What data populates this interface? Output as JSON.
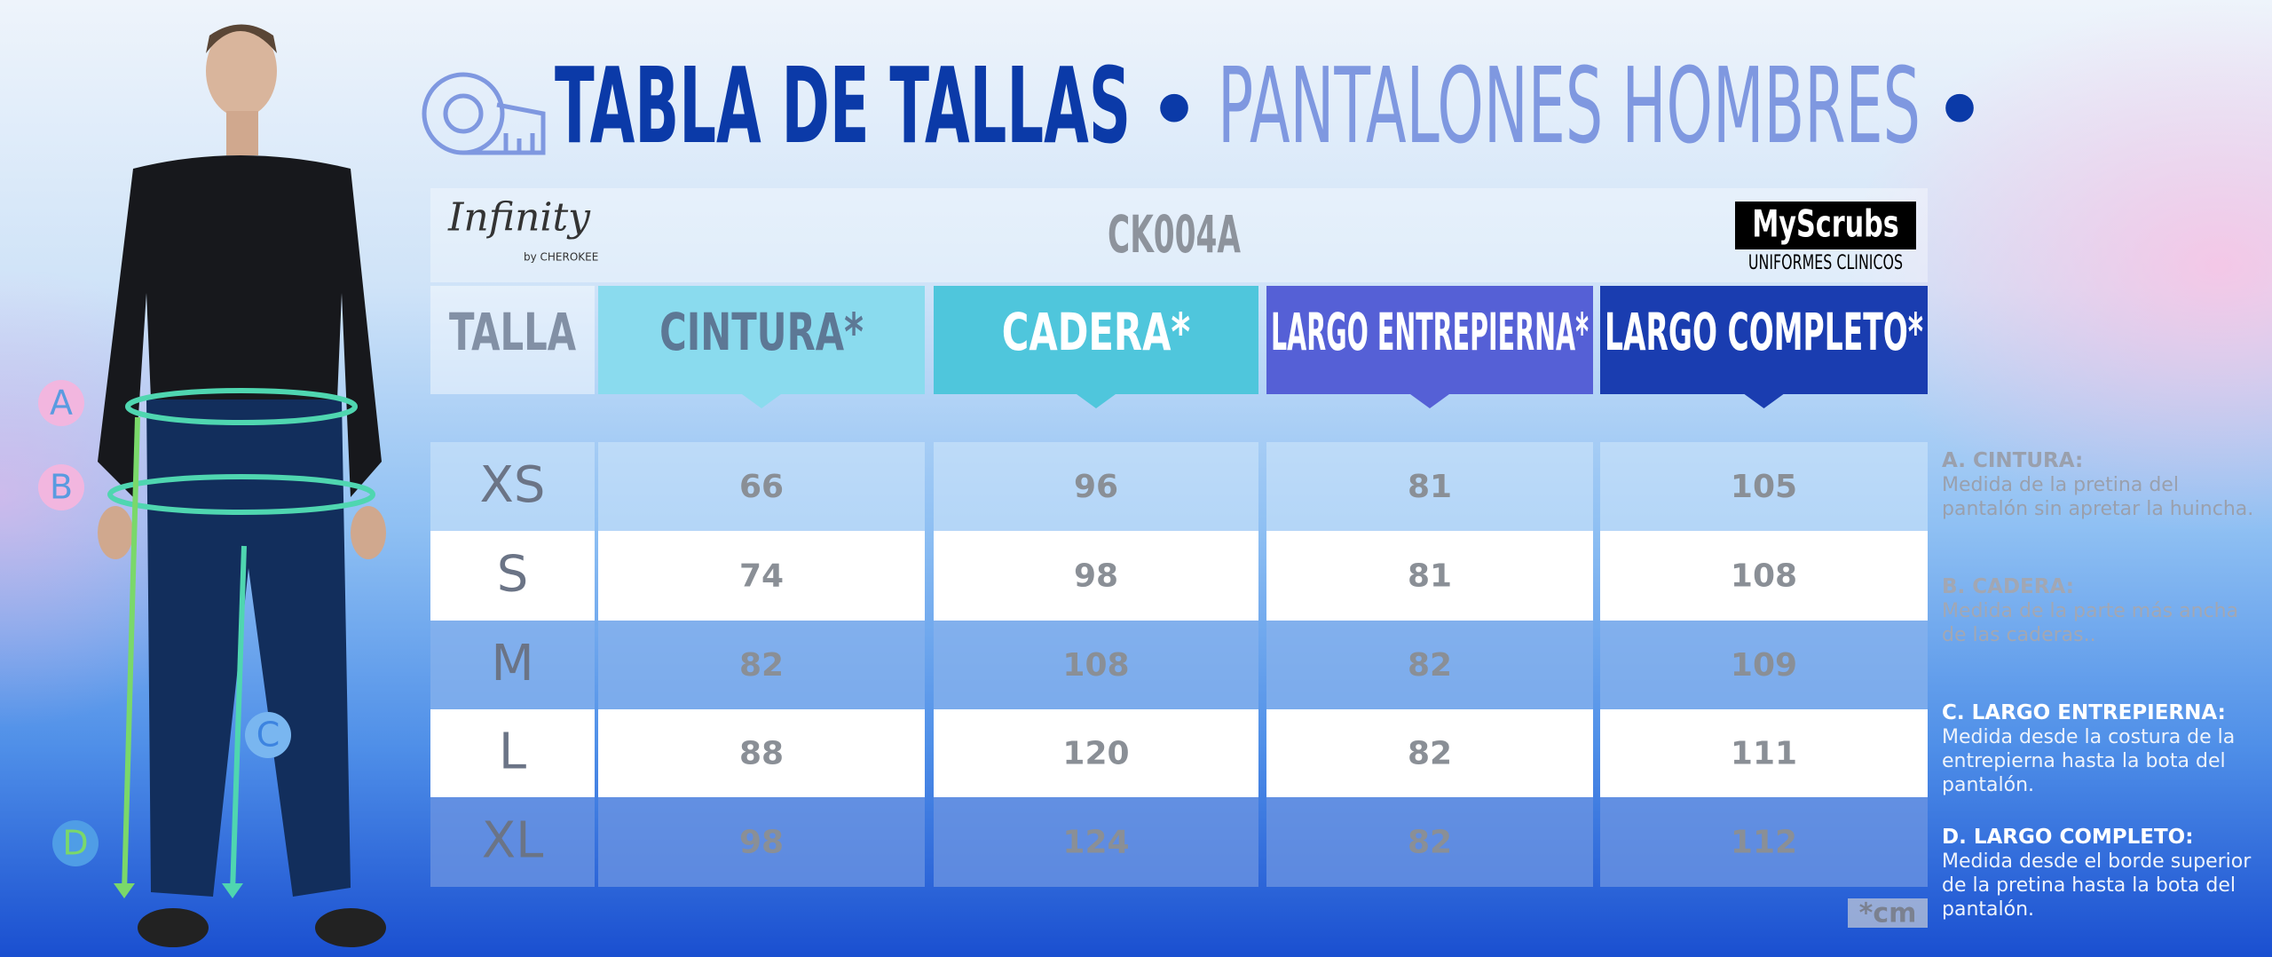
{
  "header": {
    "title": "TABLA DE TALLAS",
    "separator": "•",
    "subtitle": "PANTALONES HOMBRES"
  },
  "brand": {
    "logo": "Infinity",
    "logo_sub": "by CHEROKEE",
    "model": "CK004A",
    "store": "MyScrubs",
    "store_sub": "UNIFORMES CLINICOS"
  },
  "table": {
    "columns": [
      "TALLA",
      "CINTURA*",
      "CADERA*",
      "LARGO ENTREPIERNA*",
      "LARGO COMPLETO*"
    ],
    "rows": [
      [
        "XS",
        66,
        96,
        81,
        105
      ],
      [
        "S",
        74,
        98,
        81,
        108
      ],
      [
        "M",
        82,
        108,
        82,
        109
      ],
      [
        "L",
        88,
        120,
        82,
        111
      ],
      [
        "XL",
        98,
        124,
        82,
        112
      ]
    ]
  },
  "unit": "*cm",
  "figure_labels": [
    "A",
    "B",
    "C",
    "D"
  ],
  "notes": [
    {
      "label": "A. CINTURA:",
      "text": "Medida de la pretina del pantalón sin apretar la huincha."
    },
    {
      "label": "B. CADERA:",
      "text": "Medida de la parte más ancha de las caderas.."
    },
    {
      "label": "C. LARGO ENTREPIERNA:",
      "text": "Medida desde la costura de la entrepierna hasta la bota del pantalón."
    },
    {
      "label": "D. LARGO COMPLETO:",
      "text": "Medida desde el borde superior de la pretina hasta la bota del pantalón."
    }
  ]
}
